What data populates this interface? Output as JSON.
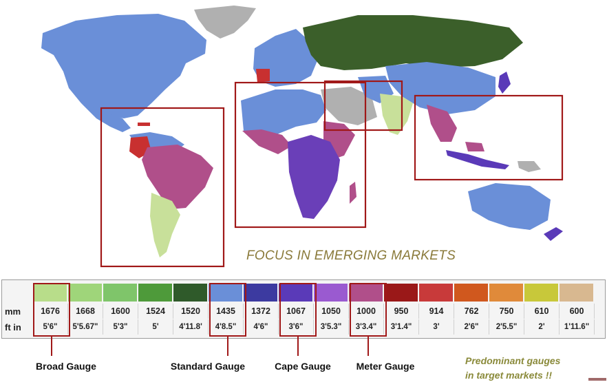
{
  "map": {
    "colors": {
      "ocean": "#ffffff",
      "standard": "#6a8fd8",
      "russian": "#3b5f2a",
      "broad": "#c8e09a",
      "cape": "#6a3fb8",
      "meter": "#b04f8a",
      "iberian": "#c83030",
      "greenland": "#b0b0b0",
      "focus_box": "#a01818"
    }
  },
  "focus_title": "FOCUS IN  EMERGING MARKETS",
  "table": {
    "row_labels": {
      "mm": "mm",
      "ft": "ft in"
    },
    "gauges": [
      {
        "mm": "1676",
        "ft": "5'6\"",
        "color": "#b8dd8a"
      },
      {
        "mm": "1668",
        "ft": "5'5.67\"",
        "color": "#9fd57a"
      },
      {
        "mm": "1600",
        "ft": "5'3\"",
        "color": "#7fc56a"
      },
      {
        "mm": "1524",
        "ft": "5'",
        "color": "#4e9a3a"
      },
      {
        "mm": "1520",
        "ft": "4'11.8'",
        "color": "#2f5a2a"
      },
      {
        "mm": "1435",
        "ft": "4'8.5\"",
        "color": "#6a8fd8"
      },
      {
        "mm": "1372",
        "ft": "4'6\"",
        "color": "#3c3aa0"
      },
      {
        "mm": "1067",
        "ft": "3'6\"",
        "color": "#5a3ab8"
      },
      {
        "mm": "1050",
        "ft": "3'5.3\"",
        "color": "#9a5ad0"
      },
      {
        "mm": "1000",
        "ft": "3'3.4\"",
        "color": "#b04f8a"
      },
      {
        "mm": "950",
        "ft": "3'1.4\"",
        "color": "#9a1818"
      },
      {
        "mm": "914",
        "ft": "3'",
        "color": "#c83a3a"
      },
      {
        "mm": "762",
        "ft": "2'6\"",
        "color": "#d0581e"
      },
      {
        "mm": "750",
        "ft": "2'5.5\"",
        "color": "#e08a3a"
      },
      {
        "mm": "610",
        "ft": "2'",
        "color": "#c8c83a"
      },
      {
        "mm": "600",
        "ft": "1'11.6\"",
        "color": "#d8b890"
      }
    ]
  },
  "labels": {
    "broad": "Broad Gauge",
    "standard": "Standard Gauge",
    "cape": "Cape Gauge",
    "meter": "Meter Gauge"
  },
  "predominant": {
    "line1": "Predominant gauges",
    "line2": "in target markets !!"
  }
}
